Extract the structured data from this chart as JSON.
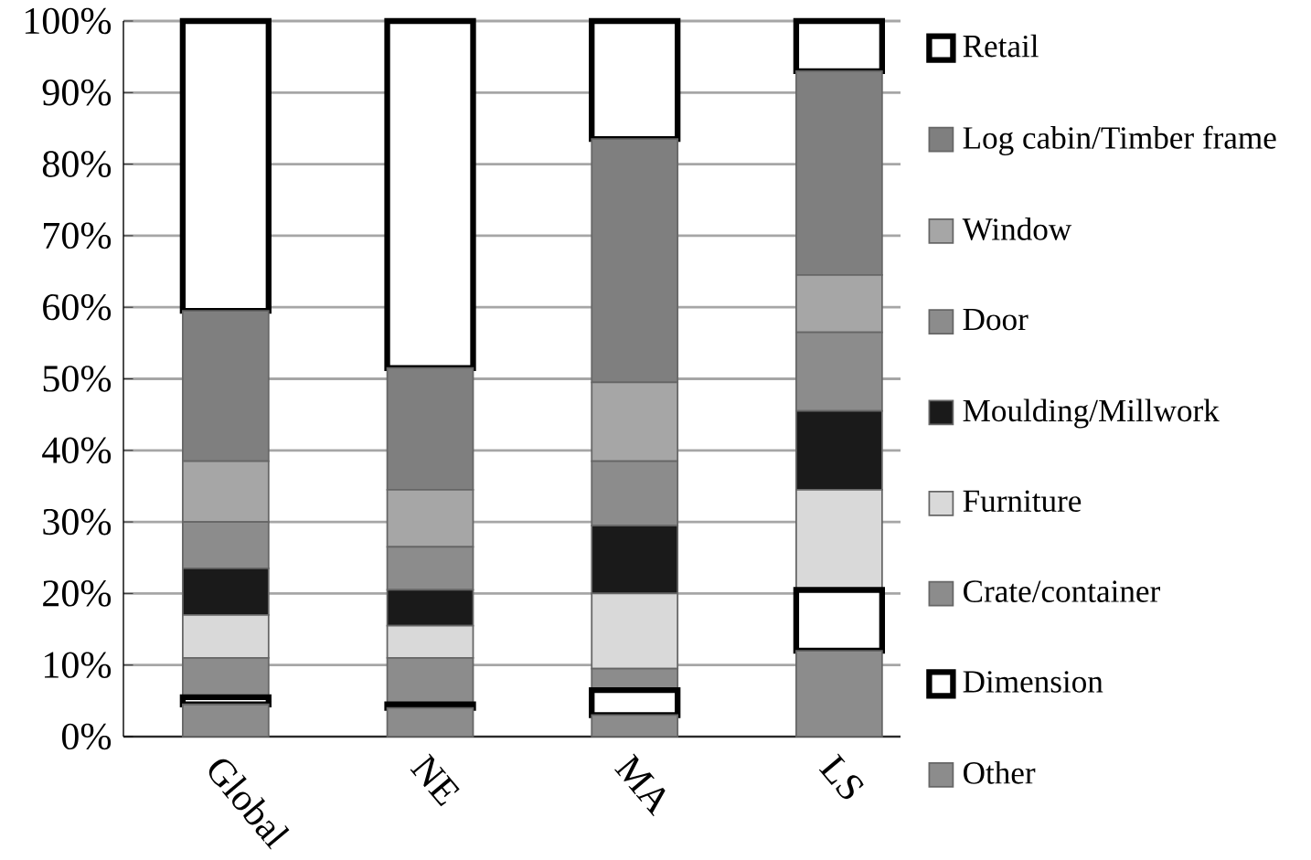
{
  "chart_data": {
    "type": "bar",
    "stacked": true,
    "categories": [
      "Global",
      "NE",
      "MA",
      "LS"
    ],
    "series": [
      {
        "name": "Other",
        "color": "#8c8c8c",
        "values": [
          4.5,
          4,
          3,
          12
        ]
      },
      {
        "name": "Dimension",
        "color": "#ffffff",
        "values": [
          1,
          0.5,
          3.5,
          8.5
        ]
      },
      {
        "name": "Crate/container",
        "color": "#8c8c8c",
        "values": [
          5.5,
          6.5,
          3,
          0
        ]
      },
      {
        "name": "Furniture",
        "color": "#d9d9d9",
        "values": [
          6,
          4.5,
          10.5,
          14
        ]
      },
      {
        "name": "Moulding/Millwork",
        "color": "#1a1a1a",
        "values": [
          6.5,
          5,
          9.5,
          11
        ]
      },
      {
        "name": "Door",
        "color": "#8c8c8c",
        "values": [
          6.5,
          6,
          9,
          11
        ]
      },
      {
        "name": "Window",
        "color": "#a6a6a6",
        "values": [
          8.5,
          8,
          11,
          8
        ]
      },
      {
        "name": "Log cabin/Timber frame",
        "color": "#7f7f7f",
        "values": [
          21,
          17,
          34,
          28.5
        ]
      },
      {
        "name": "Retail",
        "color": "#ffffff",
        "values": [
          40.5,
          48.5,
          16.5,
          7
        ]
      }
    ],
    "ylim": [
      0,
      100
    ],
    "yticks": [
      {
        "value": 0,
        "label": "0%"
      },
      {
        "value": 10,
        "label": "10%"
      },
      {
        "value": 20,
        "label": "20%"
      },
      {
        "value": 30,
        "label": "30%"
      },
      {
        "value": 40,
        "label": "40%"
      },
      {
        "value": 50,
        "label": "50%"
      },
      {
        "value": 60,
        "label": "60%"
      },
      {
        "value": 70,
        "label": "70%"
      },
      {
        "value": 80,
        "label": "80%"
      },
      {
        "value": 90,
        "label": "90%"
      },
      {
        "value": 100,
        "label": "100%"
      }
    ],
    "grid": "y",
    "legend": "right"
  }
}
